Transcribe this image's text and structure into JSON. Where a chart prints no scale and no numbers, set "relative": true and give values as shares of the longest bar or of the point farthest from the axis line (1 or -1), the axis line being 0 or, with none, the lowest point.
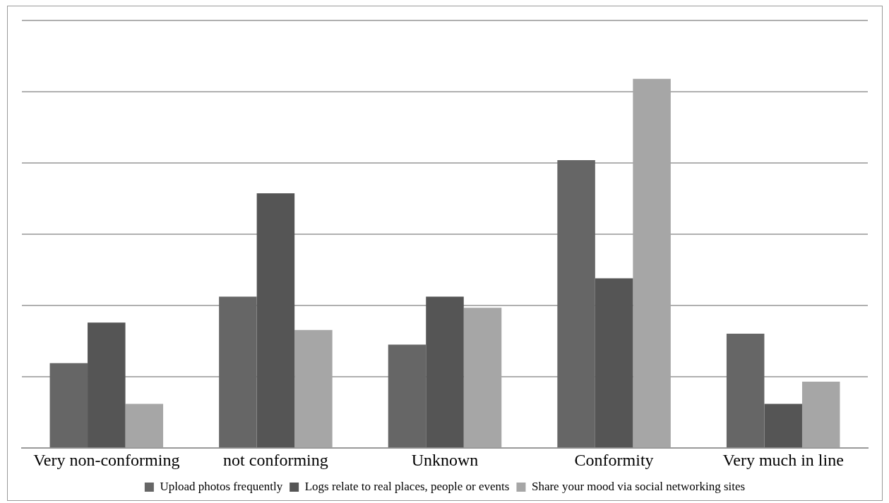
{
  "chart_data": {
    "type": "bar",
    "relative": true,
    "categories": [
      "Very non-conforming",
      "not conforming",
      "Unknown",
      "Conformity",
      "Very much in line"
    ],
    "series": [
      {
        "name": "Upload photos frequently",
        "color": "#666666",
        "values": [
          0.23,
          0.41,
          0.28,
          0.78,
          0.31
        ]
      },
      {
        "name": "Logs relate to real places, people or events",
        "color": "#555555",
        "values": [
          0.34,
          0.69,
          0.41,
          0.46,
          0.12
        ]
      },
      {
        "name": "Share your mood via social networking sites",
        "color": "#a6a6a6",
        "values": [
          0.12,
          0.32,
          0.38,
          1,
          0.18
        ]
      }
    ],
    "grid": "y",
    "legend": "bottom"
  }
}
